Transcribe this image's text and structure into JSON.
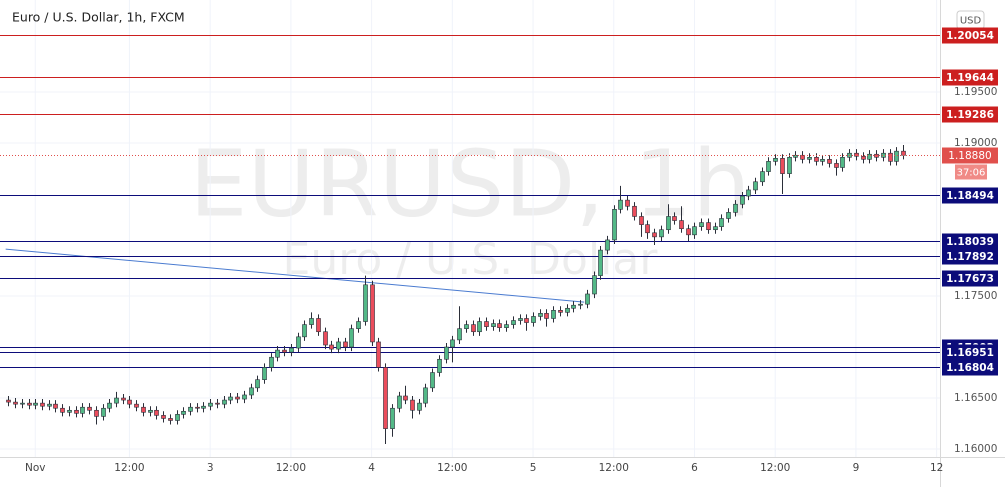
{
  "chart_data": {
    "type": "candlestick",
    "title": "Euro / U.S. Dollar, 1h, FXCM",
    "currency": "USD",
    "watermark": "EURUSD, 1h",
    "watermark_subtitle": "Euro / U.S. Dollar",
    "up_color": "#53b987",
    "down_color": "#eb4d5c",
    "grid": true,
    "ylim": [
      1.15922,
      1.20402
    ],
    "yticks": [
      {
        "value": 1.195,
        "label": "1.19500"
      },
      {
        "value": 1.19,
        "label": "1.19000"
      },
      {
        "value": 1.175,
        "label": "1.17500"
      },
      {
        "value": 1.165,
        "label": "1.16500"
      },
      {
        "value": 1.16,
        "label": "1.16000"
      }
    ],
    "xlim": [
      -0.5,
      138.5
    ],
    "xticks": [
      {
        "value": 4,
        "label": "Nov"
      },
      {
        "value": 18,
        "label": "12:00"
      },
      {
        "value": 30,
        "label": "3"
      },
      {
        "value": 42,
        "label": "12:00"
      },
      {
        "value": 54,
        "label": "4"
      },
      {
        "value": 66,
        "label": "12:00"
      },
      {
        "value": 78,
        "label": "5"
      },
      {
        "value": 90,
        "label": "12:00"
      },
      {
        "value": 102,
        "label": "6"
      },
      {
        "value": 114,
        "label": "12:00"
      },
      {
        "value": 126,
        "label": "9"
      },
      {
        "value": 138,
        "label": "12"
      }
    ],
    "levels": [
      {
        "value": 1.20054,
        "color": "#cc1f1f"
      },
      {
        "value": 1.19644,
        "color": "#cc1f1f"
      },
      {
        "value": 1.19286,
        "color": "#cc1f1f"
      },
      {
        "value": 1.18494,
        "color": "#0c0c7a"
      },
      {
        "value": 1.18039,
        "color": "#0c0c7a"
      },
      {
        "value": 1.17892,
        "color": "#0c0c7a"
      },
      {
        "value": 1.17673,
        "color": "#0c0c7a"
      },
      {
        "value": 1.17002,
        "color": "#0c0c7a"
      },
      {
        "value": 1.16951,
        "color": "#0c0c7a"
      },
      {
        "value": 1.16804,
        "color": "#0c0c7a"
      }
    ],
    "current_price": {
      "value": 1.1888,
      "label": "1.18880",
      "countdown": "37:06",
      "color": "#e0504c"
    },
    "trendline": {
      "x": [
        -0.4,
        85.6
      ],
      "y": [
        1.1796,
        1.1744
      ],
      "color": "#4a7bd0"
    },
    "candles": [
      [
        1.1648,
        1.1652,
        1.1642,
        1.1646
      ],
      [
        1.1646,
        1.165,
        1.164,
        1.1644
      ],
      [
        1.1644,
        1.1649,
        1.164,
        1.1645
      ],
      [
        1.1645,
        1.1649,
        1.1639,
        1.1643
      ],
      [
        1.1643,
        1.1649,
        1.1639,
        1.1645
      ],
      [
        1.1645,
        1.1649,
        1.1638,
        1.1642
      ],
      [
        1.1642,
        1.1648,
        1.1638,
        1.1644
      ],
      [
        1.1644,
        1.1648,
        1.1636,
        1.164
      ],
      [
        1.164,
        1.1644,
        1.1632,
        1.1636
      ],
      [
        1.1636,
        1.1642,
        1.1632,
        1.1638
      ],
      [
        1.1638,
        1.1642,
        1.1631,
        1.1635
      ],
      [
        1.1635,
        1.1645,
        1.1631,
        1.1641
      ],
      [
        1.1641,
        1.1645,
        1.1634,
        1.1638
      ],
      [
        1.1638,
        1.1642,
        1.1624,
        1.1632
      ],
      [
        1.1632,
        1.1644,
        1.1628,
        1.164
      ],
      [
        1.164,
        1.1649,
        1.1636,
        1.1645
      ],
      [
        1.1645,
        1.1656,
        1.1641,
        1.165
      ],
      [
        1.165,
        1.1654,
        1.1644,
        1.1648
      ],
      [
        1.1648,
        1.1652,
        1.164,
        1.1644
      ],
      [
        1.1644,
        1.1648,
        1.1637,
        1.1641
      ],
      [
        1.1641,
        1.1645,
        1.1632,
        1.1636
      ],
      [
        1.1636,
        1.1642,
        1.1632,
        1.1638
      ],
      [
        1.1638,
        1.1642,
        1.1629,
        1.1633
      ],
      [
        1.1633,
        1.1637,
        1.1626,
        1.163
      ],
      [
        1.163,
        1.1634,
        1.1624,
        1.1628
      ],
      [
        1.1628,
        1.1638,
        1.1624,
        1.1634
      ],
      [
        1.1634,
        1.1641,
        1.163,
        1.1637
      ],
      [
        1.1637,
        1.1645,
        1.1633,
        1.1641
      ],
      [
        1.1641,
        1.1645,
        1.1636,
        1.164
      ],
      [
        1.164,
        1.1646,
        1.1636,
        1.1642
      ],
      [
        1.1642,
        1.1649,
        1.1638,
        1.1645
      ],
      [
        1.1645,
        1.1649,
        1.164,
        1.1644
      ],
      [
        1.1644,
        1.1652,
        1.164,
        1.1648
      ],
      [
        1.1648,
        1.1655,
        1.1644,
        1.1651
      ],
      [
        1.1651,
        1.1655,
        1.1645,
        1.1649
      ],
      [
        1.1649,
        1.1657,
        1.1645,
        1.1653
      ],
      [
        1.1653,
        1.1664,
        1.1649,
        1.166
      ],
      [
        1.166,
        1.1672,
        1.1656,
        1.1668
      ],
      [
        1.1668,
        1.1684,
        1.1664,
        1.168
      ],
      [
        1.168,
        1.1694,
        1.1676,
        1.169
      ],
      [
        1.169,
        1.1701,
        1.1686,
        1.1697
      ],
      [
        1.1697,
        1.1701,
        1.1691,
        1.1695
      ],
      [
        1.1695,
        1.1703,
        1.1691,
        1.1699
      ],
      [
        1.1699,
        1.1714,
        1.1695,
        1.171
      ],
      [
        1.171,
        1.1726,
        1.1706,
        1.1722
      ],
      [
        1.1722,
        1.1734,
        1.1718,
        1.1728
      ],
      [
        1.1728,
        1.1732,
        1.1711,
        1.1715
      ],
      [
        1.1715,
        1.1719,
        1.1698,
        1.1702
      ],
      [
        1.1702,
        1.1706,
        1.1694,
        1.1698
      ],
      [
        1.1698,
        1.1709,
        1.1694,
        1.1705
      ],
      [
        1.1705,
        1.1709,
        1.1696,
        1.17
      ],
      [
        1.17,
        1.1722,
        1.1696,
        1.1718
      ],
      [
        1.1718,
        1.1729,
        1.1714,
        1.1725
      ],
      [
        1.1725,
        1.177,
        1.1721,
        1.1761
      ],
      [
        1.1761,
        1.1765,
        1.1701,
        1.1705
      ],
      [
        1.1705,
        1.1709,
        1.1676,
        1.168
      ],
      [
        1.168,
        1.1684,
        1.1605,
        1.162
      ],
      [
        1.162,
        1.1644,
        1.1612,
        1.164
      ],
      [
        1.164,
        1.1656,
        1.1636,
        1.1652
      ],
      [
        1.1652,
        1.1662,
        1.1644,
        1.1648
      ],
      [
        1.1648,
        1.1652,
        1.163,
        1.1638
      ],
      [
        1.1638,
        1.1649,
        1.1634,
        1.1645
      ],
      [
        1.1645,
        1.1664,
        1.1641,
        1.166
      ],
      [
        1.166,
        1.1679,
        1.1656,
        1.1675
      ],
      [
        1.1675,
        1.1692,
        1.1671,
        1.1688
      ],
      [
        1.1688,
        1.1704,
        1.1684,
        1.17
      ],
      [
        1.17,
        1.1711,
        1.1685,
        1.1707
      ],
      [
        1.1707,
        1.174,
        1.1703,
        1.1718
      ],
      [
        1.1718,
        1.1726,
        1.1714,
        1.1722
      ],
      [
        1.1722,
        1.1726,
        1.1711,
        1.1715
      ],
      [
        1.1715,
        1.1729,
        1.1711,
        1.1725
      ],
      [
        1.1725,
        1.1729,
        1.1716,
        1.172
      ],
      [
        1.172,
        1.1727,
        1.1716,
        1.1723
      ],
      [
        1.1723,
        1.1727,
        1.1715,
        1.1719
      ],
      [
        1.1719,
        1.1726,
        1.1715,
        1.1722
      ],
      [
        1.1722,
        1.173,
        1.1718,
        1.1726
      ],
      [
        1.1726,
        1.1732,
        1.1722,
        1.1728
      ],
      [
        1.1728,
        1.1732,
        1.1716,
        1.1724
      ],
      [
        1.1724,
        1.1734,
        1.172,
        1.173
      ],
      [
        1.173,
        1.1737,
        1.1726,
        1.1733
      ],
      [
        1.1733,
        1.1737,
        1.172,
        1.1728
      ],
      [
        1.1728,
        1.174,
        1.1724,
        1.1736
      ],
      [
        1.1736,
        1.174,
        1.173,
        1.1734
      ],
      [
        1.1734,
        1.1742,
        1.173,
        1.1738
      ],
      [
        1.1738,
        1.1745,
        1.1734,
        1.1741
      ],
      [
        1.1741,
        1.1746,
        1.1737,
        1.1742
      ],
      [
        1.1742,
        1.1756,
        1.1738,
        1.1752
      ],
      [
        1.1752,
        1.1774,
        1.1748,
        1.177
      ],
      [
        1.177,
        1.1799,
        1.1766,
        1.1795
      ],
      [
        1.1795,
        1.1809,
        1.1791,
        1.1805
      ],
      [
        1.1805,
        1.1839,
        1.1801,
        1.1835
      ],
      [
        1.1835,
        1.1858,
        1.1831,
        1.1844
      ],
      [
        1.1844,
        1.1848,
        1.1834,
        1.1838
      ],
      [
        1.1838,
        1.1842,
        1.1824,
        1.1828
      ],
      [
        1.1828,
        1.1832,
        1.1808,
        1.182
      ],
      [
        1.182,
        1.1824,
        1.1806,
        1.1812
      ],
      [
        1.1812,
        1.1816,
        1.18,
        1.1808
      ],
      [
        1.1808,
        1.1819,
        1.1804,
        1.1815
      ],
      [
        1.1815,
        1.184,
        1.1811,
        1.1828
      ],
      [
        1.1828,
        1.1832,
        1.182,
        1.1824
      ],
      [
        1.1824,
        1.1838,
        1.1812,
        1.1816
      ],
      [
        1.1816,
        1.182,
        1.1804,
        1.181
      ],
      [
        1.181,
        1.1822,
        1.1806,
        1.1818
      ],
      [
        1.1818,
        1.1826,
        1.1814,
        1.1822
      ],
      [
        1.1822,
        1.1826,
        1.1811,
        1.1815
      ],
      [
        1.1815,
        1.1822,
        1.1811,
        1.1818
      ],
      [
        1.1818,
        1.183,
        1.1814,
        1.1826
      ],
      [
        1.1826,
        1.1836,
        1.1822,
        1.1832
      ],
      [
        1.1832,
        1.1844,
        1.1828,
        1.184
      ],
      [
        1.184,
        1.1852,
        1.1836,
        1.1848
      ],
      [
        1.1848,
        1.1858,
        1.1844,
        1.1854
      ],
      [
        1.1854,
        1.1866,
        1.185,
        1.1862
      ],
      [
        1.1862,
        1.1876,
        1.1858,
        1.1872
      ],
      [
        1.1872,
        1.1886,
        1.1868,
        1.1882
      ],
      [
        1.1882,
        1.1889,
        1.1878,
        1.1885
      ],
      [
        1.1885,
        1.1889,
        1.185,
        1.187
      ],
      [
        1.187,
        1.189,
        1.1866,
        1.1886
      ],
      [
        1.1886,
        1.1892,
        1.1882,
        1.1888
      ],
      [
        1.1888,
        1.1892,
        1.188,
        1.1884
      ],
      [
        1.1884,
        1.189,
        1.188,
        1.1886
      ],
      [
        1.1886,
        1.189,
        1.1878,
        1.1882
      ],
      [
        1.1882,
        1.1888,
        1.1878,
        1.1884
      ],
      [
        1.1884,
        1.1888,
        1.1876,
        1.188
      ],
      [
        1.188,
        1.1884,
        1.1868,
        1.1876
      ],
      [
        1.1876,
        1.189,
        1.1872,
        1.1886
      ],
      [
        1.1886,
        1.1894,
        1.1882,
        1.189
      ],
      [
        1.189,
        1.1894,
        1.1883,
        1.1887
      ],
      [
        1.1887,
        1.1891,
        1.188,
        1.1884
      ],
      [
        1.1884,
        1.1893,
        1.188,
        1.1889
      ],
      [
        1.1889,
        1.1893,
        1.1882,
        1.1886
      ],
      [
        1.1886,
        1.1894,
        1.1882,
        1.189
      ],
      [
        1.189,
        1.1894,
        1.1878,
        1.1882
      ],
      [
        1.1882,
        1.1896,
        1.1878,
        1.1892
      ],
      [
        1.1892,
        1.1898,
        1.1884,
        1.1888
      ]
    ]
  }
}
